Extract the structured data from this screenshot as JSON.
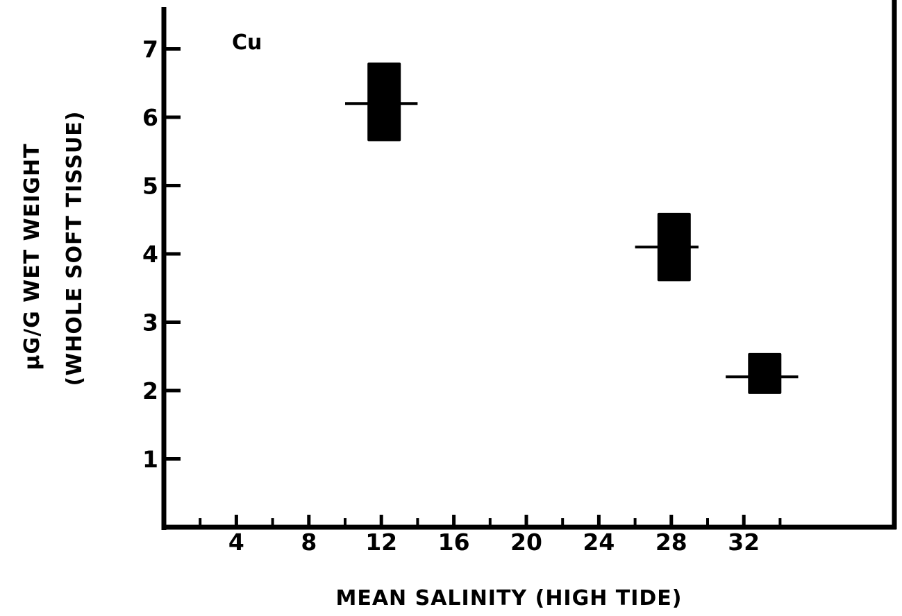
{
  "chart_data": {
    "type": "scatter",
    "panel_label": "Cu",
    "xlabel": "MEAN SALINITY (HIGH TIDE)",
    "ylabel_line1": "µG/G WET WEIGHT",
    "ylabel_line2": "(WHOLE SOFT TISSUE)",
    "xlim": [
      0,
      40
    ],
    "ylim": [
      0,
      7.5
    ],
    "x_ticks_major": [
      4,
      8,
      12,
      16,
      20,
      24,
      28,
      32
    ],
    "x_ticks_minor": [
      2,
      6,
      10,
      14,
      18,
      22,
      26,
      30,
      34
    ],
    "y_ticks": [
      1,
      2,
      3,
      4,
      5,
      6,
      7
    ],
    "grid": false,
    "points": [
      {
        "x": 12,
        "x_low": 10,
        "x_high": 14,
        "y": 6.2,
        "y_low": 5.65,
        "y_high": 6.8
      },
      {
        "x": 28,
        "x_low": 26,
        "x_high": 29.5,
        "y": 4.1,
        "y_low": 3.6,
        "y_high": 4.6
      },
      {
        "x": 33,
        "x_low": 31,
        "x_high": 35,
        "y": 2.2,
        "y_low": 1.95,
        "y_high": 2.55
      }
    ]
  }
}
